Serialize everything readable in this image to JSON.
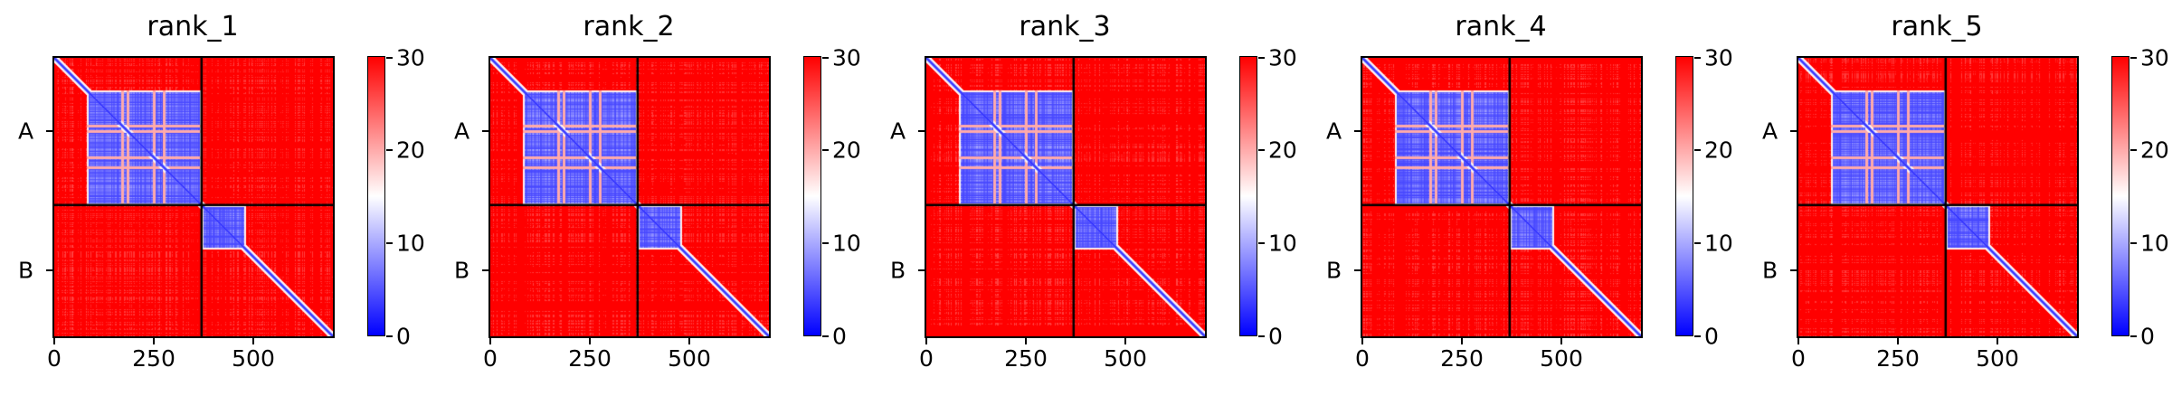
{
  "chart_data": [
    {
      "type": "heatmap",
      "title": "rank_1",
      "xlabel": "",
      "ylabel": "",
      "x_ticks": [
        0,
        250,
        500
      ],
      "xlim": [
        0,
        700
      ],
      "chains": [
        {
          "label": "A",
          "start": 0,
          "end": 370
        },
        {
          "label": "B",
          "start": 370,
          "end": 700
        }
      ],
      "blocks": [
        {
          "chain_x": "A",
          "chain_y": "A",
          "value_range": [
            0,
            12
          ],
          "region": [
            80,
            370
          ]
        },
        {
          "chain_x": "B",
          "chain_y": "B",
          "value_range": [
            0,
            12
          ],
          "region": [
            370,
            480
          ]
        }
      ],
      "background_value": 30,
      "colorbar": {
        "min": 0,
        "max": 30,
        "ticks": [
          0,
          10,
          20,
          30
        ],
        "colormap": "bwr"
      }
    },
    {
      "type": "heatmap",
      "title": "rank_2",
      "xlabel": "",
      "ylabel": "",
      "x_ticks": [
        0,
        250,
        500
      ],
      "xlim": [
        0,
        700
      ],
      "chains": [
        {
          "label": "A",
          "start": 0,
          "end": 370
        },
        {
          "label": "B",
          "start": 370,
          "end": 700
        }
      ],
      "blocks": [
        {
          "chain_x": "A",
          "chain_y": "A",
          "value_range": [
            0,
            12
          ],
          "region": [
            80,
            370
          ]
        },
        {
          "chain_x": "B",
          "chain_y": "B",
          "value_range": [
            0,
            12
          ],
          "region": [
            370,
            480
          ]
        }
      ],
      "background_value": 30,
      "colorbar": {
        "min": 0,
        "max": 30,
        "ticks": [
          0,
          10,
          20,
          30
        ],
        "colormap": "bwr"
      }
    },
    {
      "type": "heatmap",
      "title": "rank_3",
      "xlabel": "",
      "ylabel": "",
      "x_ticks": [
        0,
        250,
        500
      ],
      "xlim": [
        0,
        700
      ],
      "chains": [
        {
          "label": "A",
          "start": 0,
          "end": 370
        },
        {
          "label": "B",
          "start": 370,
          "end": 700
        }
      ],
      "blocks": [
        {
          "chain_x": "A",
          "chain_y": "A",
          "value_range": [
            0,
            12
          ],
          "region": [
            80,
            370
          ]
        },
        {
          "chain_x": "B",
          "chain_y": "B",
          "value_range": [
            0,
            12
          ],
          "region": [
            370,
            480
          ]
        }
      ],
      "background_value": 30,
      "colorbar": {
        "min": 0,
        "max": 30,
        "ticks": [
          0,
          10,
          20,
          30
        ],
        "colormap": "bwr"
      }
    },
    {
      "type": "heatmap",
      "title": "rank_4",
      "xlabel": "",
      "ylabel": "",
      "x_ticks": [
        0,
        250,
        500
      ],
      "xlim": [
        0,
        700
      ],
      "chains": [
        {
          "label": "A",
          "start": 0,
          "end": 370
        },
        {
          "label": "B",
          "start": 370,
          "end": 700
        }
      ],
      "blocks": [
        {
          "chain_x": "A",
          "chain_y": "A",
          "value_range": [
            0,
            12
          ],
          "region": [
            80,
            370
          ]
        },
        {
          "chain_x": "B",
          "chain_y": "B",
          "value_range": [
            0,
            12
          ],
          "region": [
            370,
            480
          ]
        }
      ],
      "background_value": 30,
      "colorbar": {
        "min": 0,
        "max": 30,
        "ticks": [
          0,
          10,
          20,
          30
        ],
        "colormap": "bwr"
      }
    },
    {
      "type": "heatmap",
      "title": "rank_5",
      "xlabel": "",
      "ylabel": "",
      "x_ticks": [
        0,
        250,
        500
      ],
      "xlim": [
        0,
        700
      ],
      "chains": [
        {
          "label": "A",
          "start": 0,
          "end": 370
        },
        {
          "label": "B",
          "start": 370,
          "end": 700
        }
      ],
      "blocks": [
        {
          "chain_x": "A",
          "chain_y": "A",
          "value_range": [
            0,
            12
          ],
          "region": [
            80,
            370
          ]
        },
        {
          "chain_x": "B",
          "chain_y": "B",
          "value_range": [
            0,
            12
          ],
          "region": [
            370,
            480
          ]
        }
      ],
      "background_value": 30,
      "colorbar": {
        "min": 0,
        "max": 30,
        "ticks": [
          0,
          10,
          20,
          30
        ],
        "colormap": "bwr"
      }
    }
  ],
  "colors": {
    "high": "#ff0000",
    "mid": "#ffffff",
    "low": "#0000ff",
    "divider": "#000000"
  }
}
